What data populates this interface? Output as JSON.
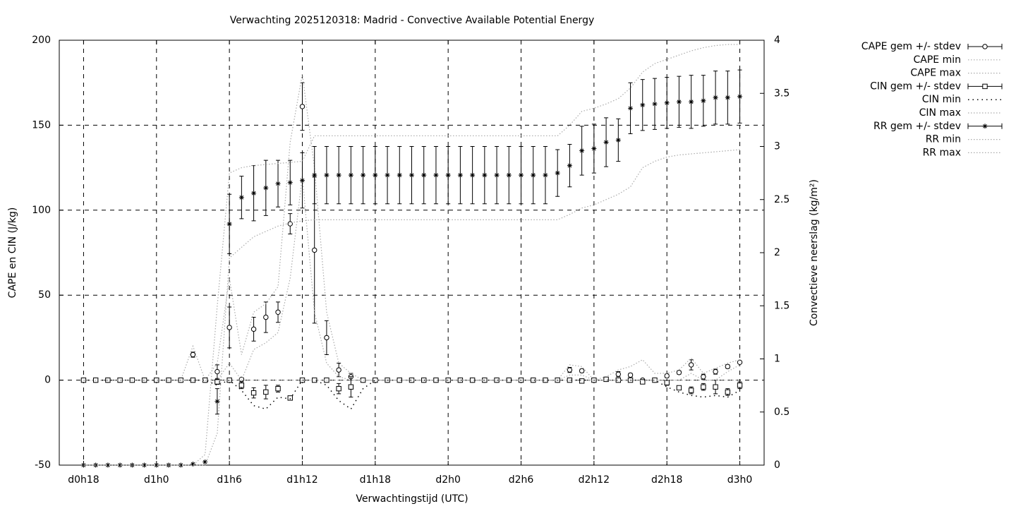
{
  "chart_data": {
    "type": "errorbar",
    "title": "Verwachting 2025120318: Madrid - Convective Available Potential Energy",
    "xlabel": "Verwachtingstijd (UTC)",
    "ylabel": "CAPE en CIN (J/kg)",
    "y2label": "Convectieve neerslag (kg/m²)",
    "grid": true,
    "legend": "outside-right",
    "xlim": [
      16,
      74
    ],
    "xticks": [
      {
        "value": 18,
        "label": "d0h18"
      },
      {
        "value": 24,
        "label": "d1h0"
      },
      {
        "value": 30,
        "label": "d1h6"
      },
      {
        "value": 36,
        "label": "d1h12"
      },
      {
        "value": 42,
        "label": "d1h18"
      },
      {
        "value": 48,
        "label": "d2h0"
      },
      {
        "value": 54,
        "label": "d2h6"
      },
      {
        "value": 60,
        "label": "d2h12"
      },
      {
        "value": 66,
        "label": "d2h18"
      },
      {
        "value": 72,
        "label": "d3h0"
      }
    ],
    "ylim": [
      -50,
      200
    ],
    "yticks": [
      -50,
      0,
      50,
      100,
      150,
      200
    ],
    "y2lim": [
      0,
      4
    ],
    "y2ticks": [
      0,
      0.5,
      1,
      1.5,
      2,
      2.5,
      3,
      3.5,
      4
    ],
    "x": [
      18,
      19,
      20,
      21,
      22,
      23,
      24,
      25,
      26,
      27,
      28,
      29,
      30,
      31,
      32,
      33,
      34,
      35,
      36,
      37,
      38,
      39,
      40,
      41,
      42,
      43,
      44,
      45,
      46,
      47,
      48,
      49,
      50,
      51,
      52,
      53,
      54,
      55,
      56,
      57,
      58,
      59,
      60,
      61,
      62,
      63,
      64,
      65,
      66,
      67,
      68,
      69,
      70,
      71,
      72
    ],
    "series": [
      {
        "name": "CAPE gem +/- stdev",
        "color": "#000000",
        "marker": "circle",
        "values": [
          0,
          0,
          0,
          0,
          0,
          0,
          0,
          0,
          0,
          15,
          0,
          5,
          31,
          0.5,
          30,
          37,
          40,
          92,
          161,
          76.5,
          25,
          6,
          2,
          0,
          0,
          0,
          0,
          0,
          0,
          0,
          0,
          0,
          0,
          0,
          0,
          0,
          0,
          0,
          0,
          0,
          6,
          5.5,
          0,
          0.5,
          3.5,
          3,
          0,
          0,
          2.5,
          4.5,
          9,
          2,
          5,
          8,
          10.5
        ],
        "errors": [
          0,
          0,
          0,
          0,
          0,
          0,
          0,
          0,
          0,
          1.5,
          0,
          4,
          12,
          1,
          7,
          9,
          6,
          6,
          14,
          43,
          10,
          4,
          2,
          0,
          0,
          0,
          0,
          0,
          0,
          0,
          0,
          0,
          0,
          0,
          0,
          0,
          0,
          0,
          0,
          0,
          1.5,
          1,
          0,
          1,
          1.5,
          1,
          0,
          0,
          1,
          1,
          3,
          1.5,
          1.5,
          1,
          0.5
        ]
      },
      {
        "name": "CAPE min",
        "color": "#aaaaaa",
        "line": "dotted",
        "values": [
          0,
          0,
          0,
          0,
          0,
          0,
          0,
          0,
          0,
          0,
          0,
          0,
          10,
          0,
          18,
          22,
          28,
          60,
          120,
          40,
          10,
          2,
          0,
          0,
          0,
          0,
          0,
          0,
          0,
          0,
          0,
          0,
          0,
          0,
          0,
          0,
          0,
          0,
          0,
          0,
          3,
          3,
          0,
          0,
          0,
          0,
          0,
          0,
          0,
          0,
          4,
          0,
          0,
          5,
          9
        ]
      },
      {
        "name": "CAPE max",
        "color": "#aaaaaa",
        "line": "dotted",
        "values": [
          0,
          0,
          0,
          0,
          0,
          0,
          0,
          0,
          0,
          20,
          0,
          10,
          60,
          15,
          40,
          45,
          55,
          140,
          180,
          125,
          40,
          10,
          4,
          0,
          0,
          0,
          0,
          0,
          0,
          0,
          0,
          0,
          0,
          0,
          0,
          0,
          0,
          0,
          0,
          0,
          9,
          8,
          0,
          2,
          6,
          8,
          12,
          4,
          4,
          6,
          13,
          4,
          7,
          10,
          12
        ]
      },
      {
        "name": "CIN gem +/- stdev",
        "color": "#000000",
        "marker": "square",
        "values": [
          0,
          0,
          0,
          0,
          0,
          0,
          0,
          0,
          0,
          0,
          0,
          -1,
          0,
          -3,
          -7.5,
          -7,
          -5,
          -10.5,
          0,
          0,
          0,
          -5,
          -4,
          0,
          0,
          0,
          0,
          0,
          0,
          0,
          0,
          0,
          0,
          0,
          0,
          0,
          0,
          0,
          0,
          0,
          0,
          -0.5,
          0,
          0.5,
          0,
          0,
          -1,
          0,
          -1.5,
          -4.5,
          -6,
          -4,
          -4,
          -7,
          -3
        ],
        "errors": [
          0,
          0,
          0,
          0,
          0,
          0,
          0,
          0,
          0,
          0,
          0,
          1.5,
          0,
          2,
          3,
          4,
          2,
          1,
          0,
          0,
          0,
          3,
          6,
          0,
          0,
          0,
          0,
          0,
          0,
          0,
          0,
          0,
          0,
          0,
          0,
          0,
          0,
          0,
          0,
          0,
          0,
          0,
          0,
          1,
          0,
          0,
          0,
          0,
          1.5,
          1,
          2,
          2,
          4,
          2,
          2
        ]
      },
      {
        "name": "CIN min",
        "color": "#000000",
        "line": "sparse",
        "values": [
          0,
          0,
          0,
          0,
          0,
          0,
          0,
          0,
          0,
          0,
          0,
          -3,
          0,
          -6,
          -15,
          -17,
          -10,
          -11,
          0,
          0,
          -3,
          -12,
          -17,
          -5,
          0,
          0,
          0,
          0,
          0,
          0,
          0,
          0,
          0,
          0,
          0,
          0,
          0,
          0,
          0,
          0,
          0,
          0,
          0,
          0,
          0,
          0,
          0,
          0,
          -4,
          -7,
          -9,
          -10,
          -9,
          -10,
          -6
        ]
      },
      {
        "name": "CIN max",
        "color": "#aaaaaa",
        "line": "dotted",
        "values": [
          0,
          0,
          0,
          0,
          0,
          0,
          0,
          0,
          0,
          0,
          0,
          0,
          0,
          0,
          0,
          0,
          0,
          0,
          0,
          0,
          0,
          0,
          0,
          0,
          0,
          0,
          0,
          0,
          0,
          0,
          0,
          0,
          0,
          0,
          0,
          0,
          0,
          0,
          0,
          0,
          0,
          0,
          0,
          0,
          0,
          0,
          0,
          0,
          0,
          0,
          0,
          0,
          0,
          0,
          0
        ]
      },
      {
        "name": "RR gem +/- stdev",
        "color": "#000000",
        "marker": "star",
        "axis": "y2",
        "values": [
          0,
          0,
          0,
          0,
          0,
          0,
          0,
          0,
          0,
          0.01,
          0.03,
          0.6,
          2.27,
          2.52,
          2.56,
          2.61,
          2.65,
          2.66,
          2.68,
          2.73,
          2.73,
          2.73,
          2.73,
          2.73,
          2.73,
          2.73,
          2.73,
          2.73,
          2.73,
          2.73,
          2.73,
          2.73,
          2.73,
          2.73,
          2.73,
          2.73,
          2.73,
          2.73,
          2.73,
          2.75,
          2.82,
          2.96,
          2.98,
          3.04,
          3.06,
          3.36,
          3.39,
          3.4,
          3.41,
          3.42,
          3.42,
          3.43,
          3.46,
          3.46,
          3.47
        ],
        "errors": [
          0,
          0,
          0,
          0,
          0,
          0,
          0,
          0,
          0,
          0,
          0,
          0.12,
          0.28,
          0.2,
          0.26,
          0.26,
          0.22,
          0.21,
          0.26,
          0.27,
          0.27,
          0.27,
          0.27,
          0.27,
          0.27,
          0.27,
          0.27,
          0.27,
          0.27,
          0.27,
          0.27,
          0.27,
          0.27,
          0.27,
          0.27,
          0.27,
          0.27,
          0.27,
          0.27,
          0.22,
          0.2,
          0.23,
          0.23,
          0.23,
          0.2,
          0.24,
          0.24,
          0.24,
          0.24,
          0.24,
          0.25,
          0.24,
          0.25,
          0.25,
          0.25
        ]
      },
      {
        "name": "RR min",
        "color": "#aaaaaa",
        "line": "dotted",
        "axis": "y2",
        "values": [
          0,
          0,
          0,
          0,
          0,
          0,
          0,
          0,
          0,
          0,
          0,
          0.3,
          1.95,
          2.05,
          2.15,
          2.2,
          2.25,
          2.28,
          2.3,
          2.31,
          2.31,
          2.31,
          2.31,
          2.31,
          2.31,
          2.31,
          2.31,
          2.31,
          2.31,
          2.31,
          2.31,
          2.31,
          2.31,
          2.31,
          2.31,
          2.31,
          2.31,
          2.31,
          2.31,
          2.31,
          2.36,
          2.42,
          2.45,
          2.5,
          2.55,
          2.62,
          2.8,
          2.86,
          2.9,
          2.92,
          2.93,
          2.94,
          2.95,
          2.96,
          2.97
        ]
      },
      {
        "name": "RR max",
        "color": "#aaaaaa",
        "line": "dotted",
        "axis": "y2",
        "values": [
          0,
          0,
          0,
          0,
          0,
          0,
          0,
          0,
          0,
          0,
          0.1,
          1.5,
          2.75,
          2.8,
          2.82,
          2.83,
          2.84,
          2.85,
          2.86,
          3.1,
          3.1,
          3.1,
          3.1,
          3.1,
          3.1,
          3.1,
          3.1,
          3.1,
          3.1,
          3.1,
          3.1,
          3.1,
          3.1,
          3.1,
          3.1,
          3.1,
          3.1,
          3.1,
          3.1,
          3.1,
          3.2,
          3.33,
          3.36,
          3.4,
          3.45,
          3.55,
          3.7,
          3.78,
          3.82,
          3.86,
          3.9,
          3.93,
          3.95,
          3.96,
          3.96
        ]
      }
    ]
  }
}
